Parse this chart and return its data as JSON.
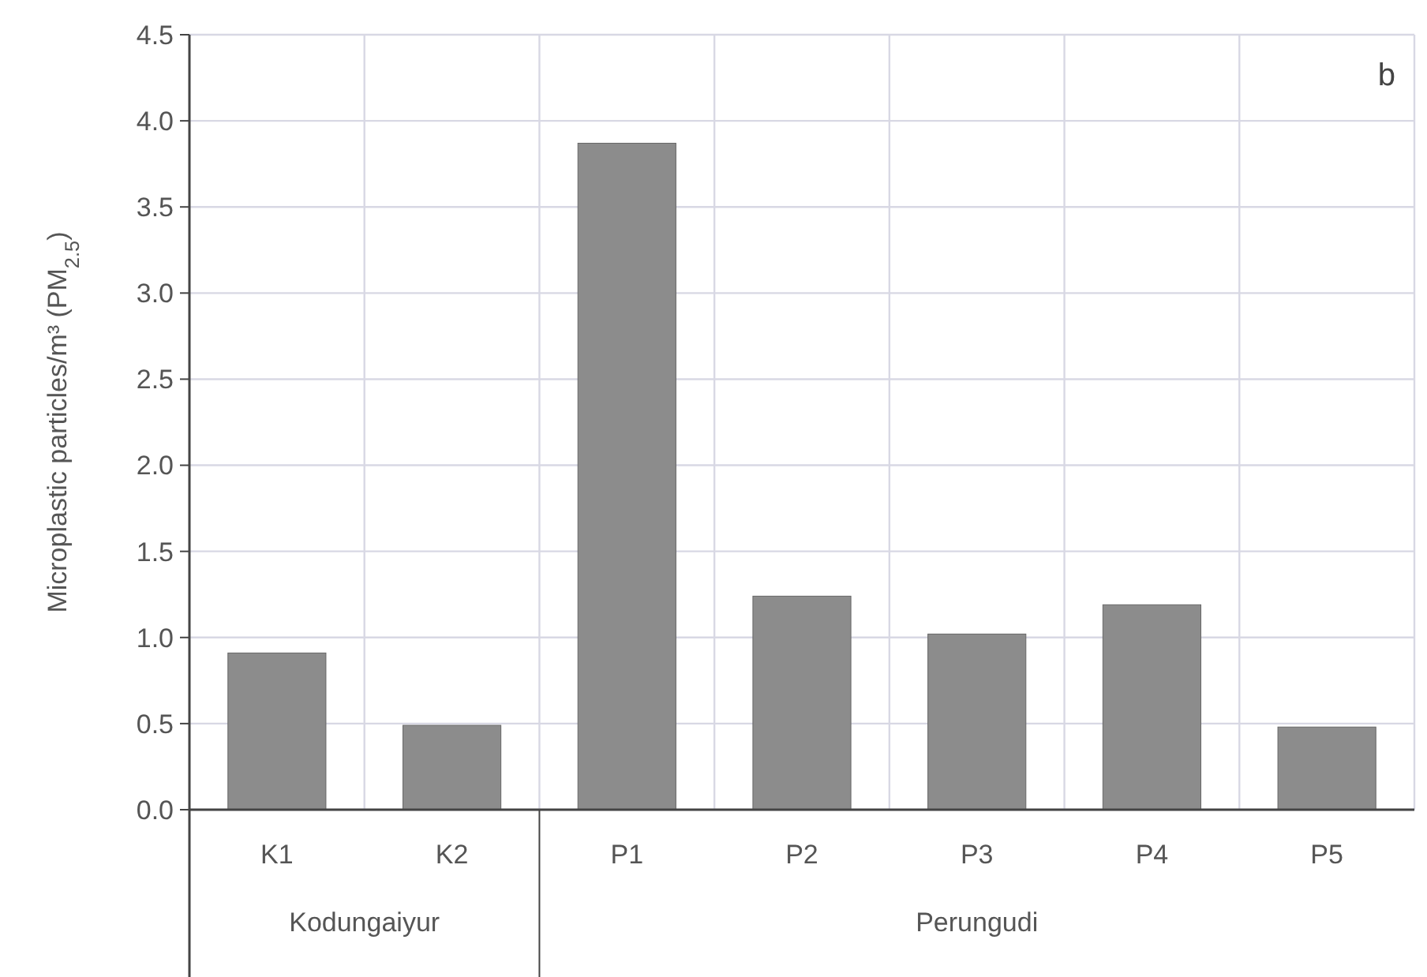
{
  "chart_data": {
    "type": "bar",
    "ylabel": "Microplastic particles/m³ (PM$_{2.5}$)",
    "categories": [
      "K1",
      "K2",
      "P1",
      "P2",
      "P3",
      "P4",
      "P5"
    ],
    "values": [
      0.91,
      0.49,
      3.87,
      1.24,
      1.02,
      1.19,
      0.48
    ],
    "color": "#8c8c8c",
    "ylim": [
      0,
      4.5
    ],
    "yticks": [
      {
        "value": 0,
        "label": "0.0"
      },
      {
        "value": 0.5,
        "label": "0.5"
      },
      {
        "value": 1,
        "label": "1.0"
      },
      {
        "value": 1.5,
        "label": "1.5"
      },
      {
        "value": 2,
        "label": "2.0"
      },
      {
        "value": 2.5,
        "label": "2.5"
      },
      {
        "value": 3,
        "label": "3.0"
      },
      {
        "value": 3.5,
        "label": "3.5"
      },
      {
        "value": 4,
        "label": "4.0"
      },
      {
        "value": 4.5,
        "label": "4.5"
      }
    ],
    "grid": true,
    "annotations": [
      "b",
      "Kodungaiyur",
      "Perungudi"
    ]
  }
}
